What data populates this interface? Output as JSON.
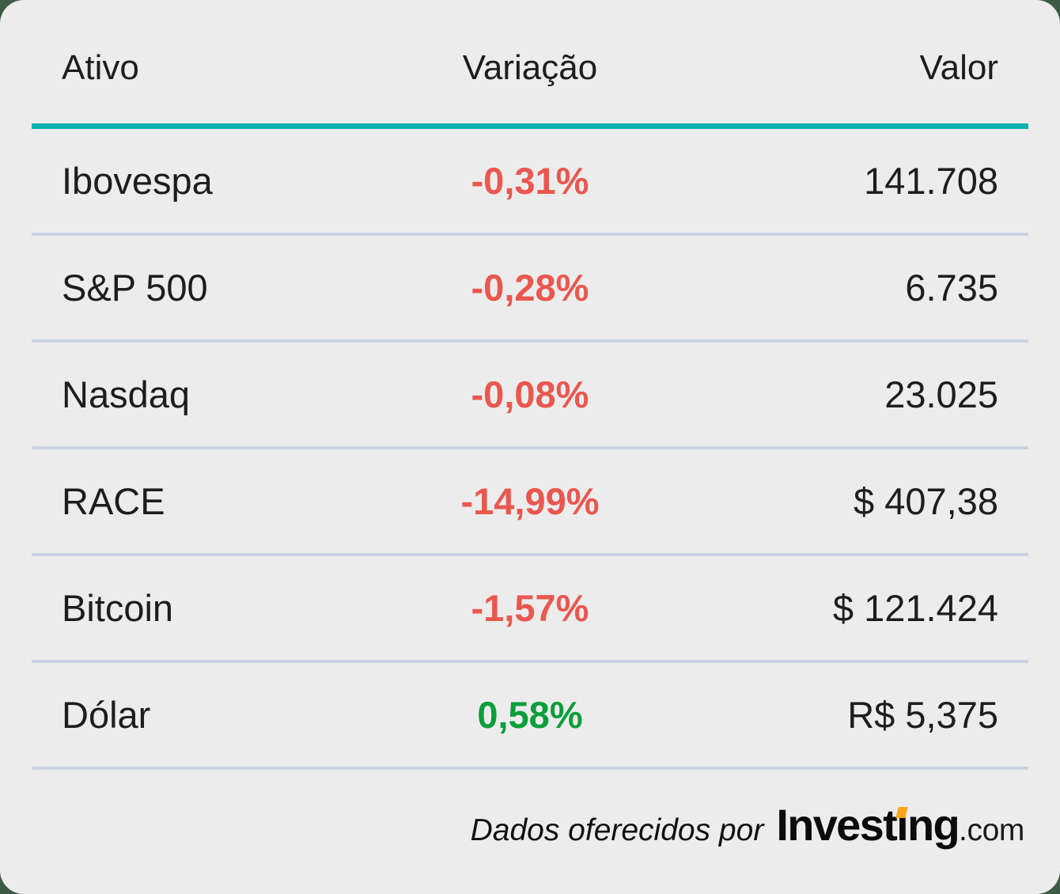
{
  "colors": {
    "teal": "#0cb3aa",
    "negative": "#ea574f",
    "positive": "#0c9e3a",
    "divider": "#ccd2e1",
    "card_bg": "#ececec",
    "page_bg": "#3e5b46",
    "text": "#1d1d1d",
    "logo_orange": "#f9a51a"
  },
  "chart_data": {
    "type": "table",
    "columns": [
      "Ativo",
      "Variação",
      "Valor"
    ],
    "rows": [
      {
        "ativo": "Ibovespa",
        "variacao": "-0,31%",
        "valor": "141.708"
      },
      {
        "ativo": "S&P 500",
        "variacao": "-0,28%",
        "valor": "6.735"
      },
      {
        "ativo": "Nasdaq",
        "variacao": "-0,08%",
        "valor": "23.025"
      },
      {
        "ativo": "RACE",
        "variacao": "-14,99%",
        "valor": "$ 407,38"
      },
      {
        "ativo": "Bitcoin",
        "variacao": "-1,57%",
        "valor": "$ 121.424"
      },
      {
        "ativo": "Dólar",
        "variacao": "0,58%",
        "valor": "R$ 5,375"
      }
    ]
  },
  "footer": {
    "attribution": "Dados oferecidos por",
    "logo": {
      "part1": "Invest",
      "dotless_i": "ı",
      "part2": "ng",
      "suffix": ".com"
    }
  }
}
